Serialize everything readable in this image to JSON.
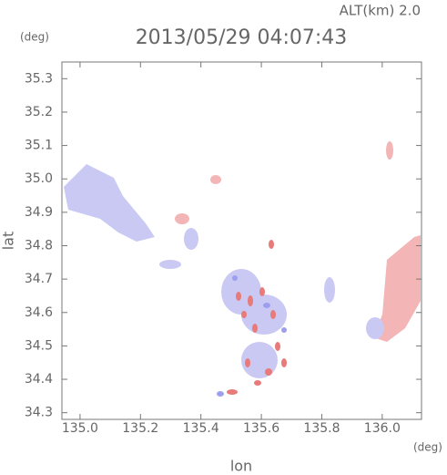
{
  "chart_data": {
    "type": "map",
    "title": "2013/05/29 04:07:43",
    "altitude_label": "ALT(km)  2.0",
    "y_unit": "(deg)",
    "x_unit": "(deg)",
    "xlabel": "lon",
    "ylabel": "lat",
    "xlim": [
      134.94,
      136.13
    ],
    "ylim": [
      34.28,
      35.35
    ],
    "xticks": [
      {
        "value": 135,
        "label": "135.0"
      },
      135.2,
      135.4,
      135.6,
      135.8,
      {
        "value": 136,
        "label": "136.0"
      }
    ],
    "yticks": [
      34.3,
      34.4,
      34.5,
      34.6,
      34.7,
      34.8,
      34.9,
      {
        "value": 35,
        "label": "35.0"
      },
      35.1,
      35.2,
      35.3
    ]
  }
}
